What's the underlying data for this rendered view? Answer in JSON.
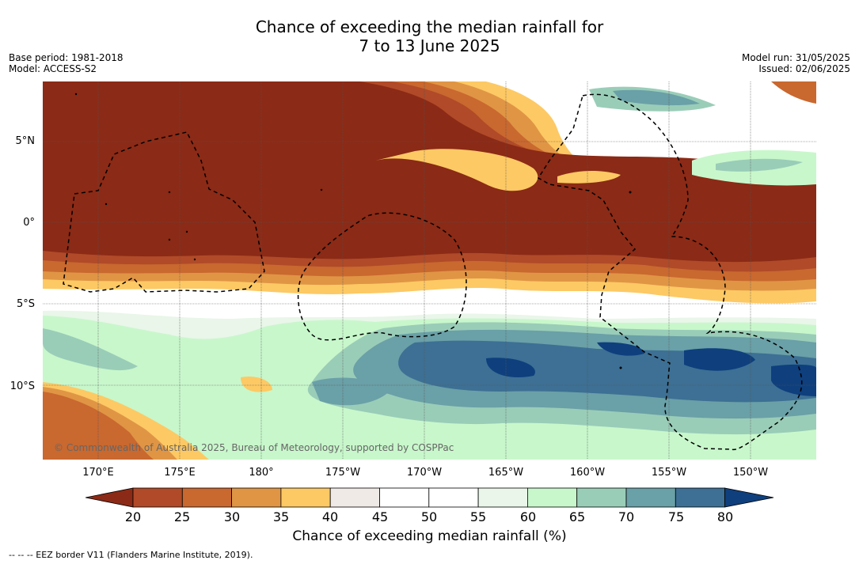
{
  "header": {
    "title_line1": "Chance of exceeding the median rainfall for",
    "title_line2": "7 to 13 June 2025",
    "base_period": "Base period: 1981-2018",
    "model": "Model: ACCESS-S2",
    "model_run": "Model run: 31/05/2025",
    "issued": "Issued: 02/06/2025"
  },
  "map": {
    "lat_labels": [
      "5°N",
      "0°",
      "5°S",
      "10°S"
    ],
    "lon_labels": [
      "170°E",
      "175°E",
      "180°",
      "175°W",
      "170°W",
      "165°W",
      "160°W",
      "155°W",
      "150°W"
    ],
    "copyright": "© Commonwealth of Australia 2025, Bureau of Meteorology, supported by COSPPac"
  },
  "colorbar": {
    "ticks": [
      "20",
      "25",
      "30",
      "35",
      "40",
      "45",
      "50",
      "55",
      "60",
      "65",
      "70",
      "75",
      "80"
    ],
    "colors": [
      "#8b2a16",
      "#b04a28",
      "#c9682f",
      "#e09545",
      "#fdc964",
      "#efeae6",
      "#ffffff",
      "#ffffff",
      "#e9f6e9",
      "#c8f7cb",
      "#9acdb8",
      "#6aa0a7",
      "#3d7094",
      "#0f3f7d"
    ],
    "label": "Chance of exceeding median rainfall (%)"
  },
  "footer": {
    "legend": "--  --  -- EEZ border V11 (Flanders Marine Institute, 2019)."
  }
}
